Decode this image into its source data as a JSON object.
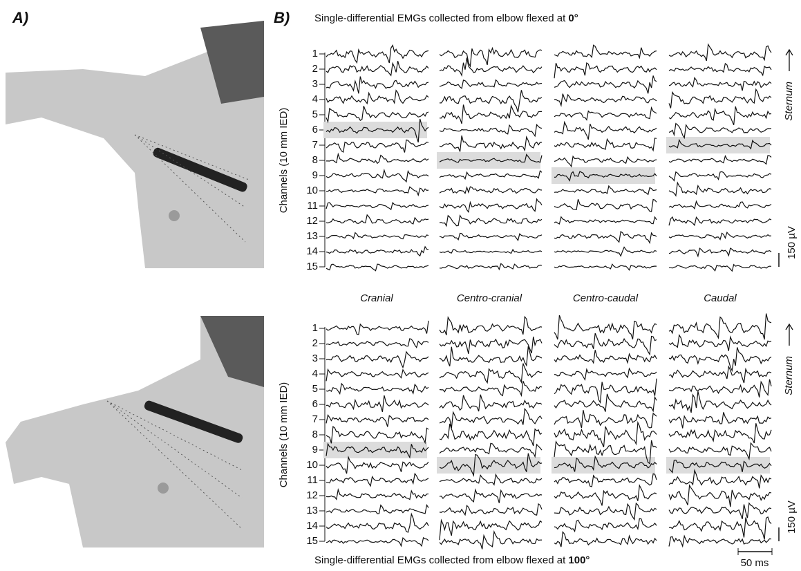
{
  "labels": {
    "panel_a": "A)",
    "panel_b": "B)",
    "y_axis": "Channels (10 mm IED)",
    "direction": "Sternum",
    "amplitude_scale": "150 µV",
    "time_scale": "50 ms"
  },
  "channels": [
    "1",
    "2",
    "3",
    "4",
    "5",
    "6",
    "7",
    "8",
    "9",
    "10",
    "11",
    "12",
    "13",
    "14",
    "15"
  ],
  "columns": [
    "Cranial",
    "Centro-cranial",
    "Centro-caudal",
    "Caudal"
  ],
  "panels": [
    {
      "title": "Single-differential EMGs collected from elbow flexed at ",
      "title_bold": "0°",
      "highlight": [
        6,
        8,
        9,
        7
      ]
    },
    {
      "title": "Single-differential EMGs collected from elbow flexed at ",
      "title_bold": "100°",
      "highlight": [
        9,
        10,
        10,
        10
      ]
    }
  ]
}
